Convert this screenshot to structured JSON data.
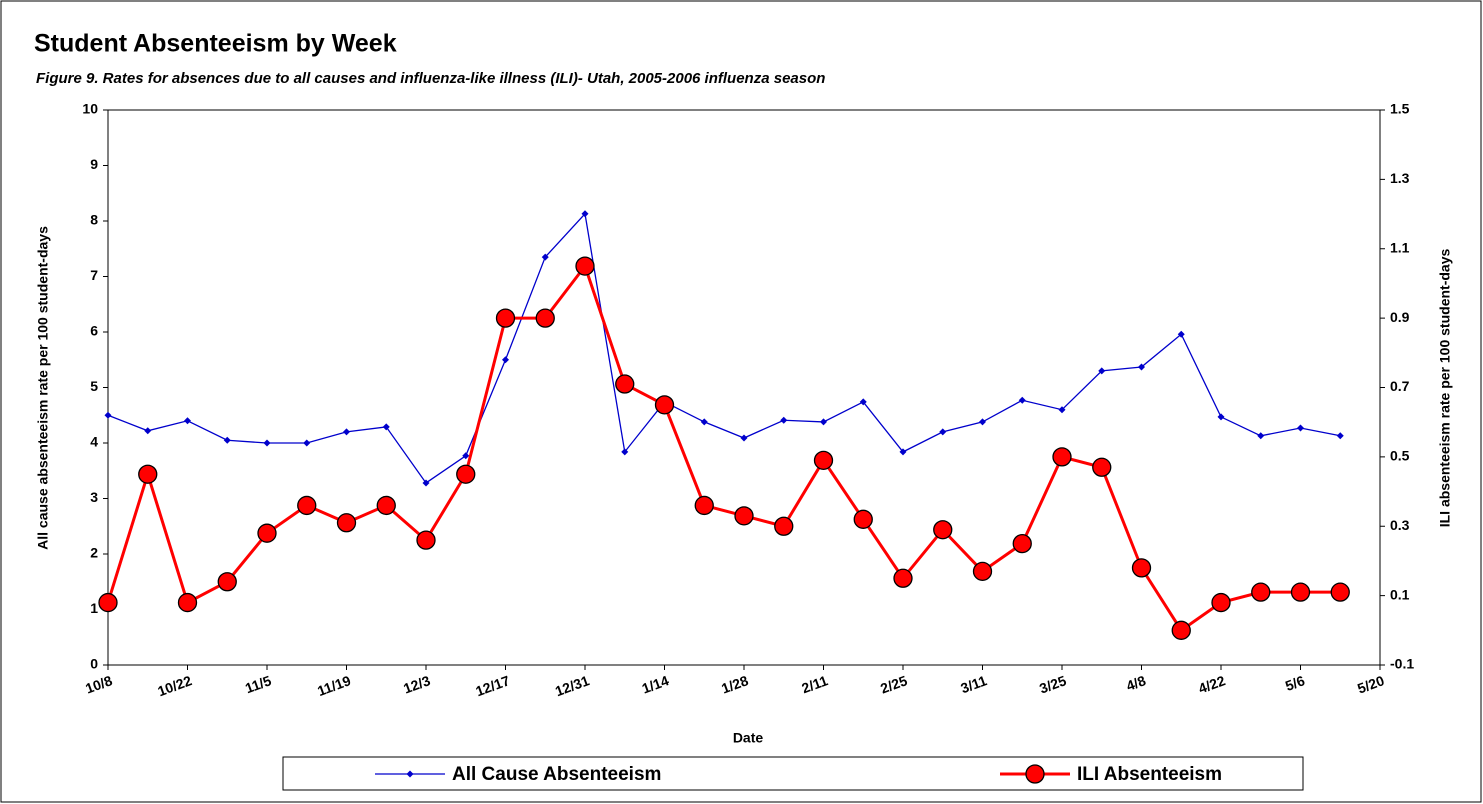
{
  "chart_data": {
    "type": "line",
    "title": "Student Absenteeism by Week",
    "subtitle": "Figure 9. Rates for absences due to all causes and influenza-like illness  (ILI)- Utah, 2005-2006 influenza season",
    "x_label": "Date",
    "y_label": "All cause absenteeism rate per 100 student-days",
    "y2_label": "ILI absenteeism rate per 100 student-days",
    "categories": [
      "10/8",
      null,
      "10/22",
      null,
      "11/5",
      null,
      "11/19",
      null,
      "12/3",
      null,
      "12/17",
      null,
      "12/31",
      null,
      "1/14",
      null,
      "1/28",
      null,
      "2/11",
      null,
      "2/25",
      null,
      "3/11",
      null,
      "3/25",
      null,
      "4/8",
      null,
      "4/22",
      null,
      "5/6",
      null,
      "5/20"
    ],
    "ylim": [
      0,
      10
    ],
    "yticks": [
      0,
      1,
      2,
      3,
      4,
      5,
      6,
      7,
      8,
      9,
      10
    ],
    "y2lim": [
      -0.1,
      1.5
    ],
    "y2ticks": [
      -0.1,
      0.1,
      0.3,
      0.5,
      0.7,
      0.9,
      1.1,
      1.3,
      1.5
    ],
    "legend": "bottom",
    "series": [
      {
        "name": "All Cause Absenteeism",
        "color": "#0000cc",
        "marker": "diamond",
        "values": [
          4.5,
          4.22,
          4.4,
          4.05,
          4.0,
          4.0,
          4.2,
          4.29,
          3.28,
          3.77,
          5.5,
          7.35,
          8.13,
          3.84,
          4.74,
          4.38,
          4.09,
          4.41,
          4.38,
          4.74,
          3.84,
          4.2,
          4.38,
          4.77,
          4.6,
          5.3,
          5.37,
          5.96,
          4.47,
          4.13,
          4.27,
          4.13,
          null
        ]
      },
      {
        "name": "ILI Absenteeism",
        "color": "#ff0000",
        "marker": "circle",
        "axis": "y2",
        "values": [
          0.08,
          0.45,
          0.08,
          0.14,
          0.28,
          0.36,
          0.31,
          0.36,
          0.26,
          0.45,
          0.9,
          0.9,
          1.05,
          0.71,
          0.65,
          0.36,
          0.33,
          0.3,
          0.49,
          0.32,
          0.15,
          0.29,
          0.17,
          0.25,
          0.5,
          0.47,
          0.18,
          0.0,
          0.08,
          0.11,
          0.11,
          0.11,
          null
        ]
      }
    ]
  }
}
